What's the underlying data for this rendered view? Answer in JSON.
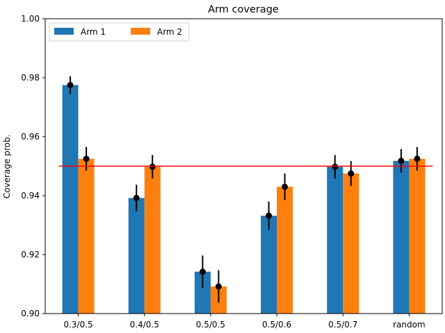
{
  "chart_data": {
    "type": "bar",
    "title": "Arm coverage",
    "xlabel": "",
    "ylabel": "Coverage prob.",
    "ylim": [
      0.9,
      1.0
    ],
    "yticks": [
      "0.90",
      "0.92",
      "0.94",
      "0.96",
      "0.98",
      "1.00"
    ],
    "categories": [
      "0.3/0.5",
      "0.4/0.5",
      "0.5/0.5",
      "0.5/0.6",
      "0.5/0.7",
      "random"
    ],
    "series": [
      {
        "name": "Arm 1",
        "color": "#1f77b4",
        "values": [
          0.9775,
          0.9392,
          0.9142,
          0.9332,
          0.9498,
          0.9518
        ],
        "error": [
          0.003,
          0.0045,
          0.0055,
          0.0048,
          0.004,
          0.004
        ]
      },
      {
        "name": "Arm 2",
        "color": "#ff7f0e",
        "values": [
          0.9525,
          0.9498,
          0.9092,
          0.943,
          0.9475,
          0.9525
        ],
        "error": [
          0.004,
          0.004,
          0.0055,
          0.0045,
          0.0042,
          0.004
        ]
      }
    ],
    "reference_line": {
      "value": 0.95,
      "color": "#ff0000"
    },
    "marker_color": "#000000",
    "legend_placement": "top-left",
    "grid": false
  }
}
